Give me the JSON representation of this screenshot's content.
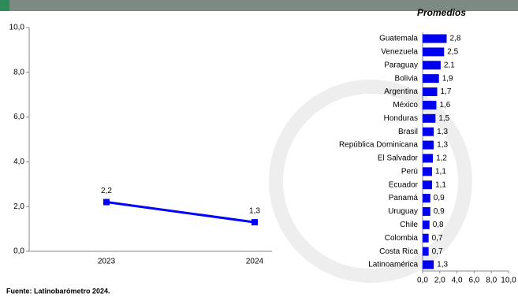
{
  "chart_data": [
    {
      "type": "line",
      "categories": [
        "2023",
        "2024"
      ],
      "values": [
        2.2,
        1.3
      ],
      "value_labels": [
        "2,2",
        "1,3"
      ],
      "color": "#0000ff",
      "ylim": [
        0,
        10
      ],
      "yticks": [
        {
          "value": 0,
          "label": "0,0"
        },
        {
          "value": 2,
          "label": "2,0"
        },
        {
          "value": 4,
          "label": "4,0"
        },
        {
          "value": 6,
          "label": "6,0"
        },
        {
          "value": 8,
          "label": "8,0"
        },
        {
          "value": 10,
          "label": "10,0"
        }
      ]
    },
    {
      "type": "hbar",
      "title": "Promedios",
      "categories": [
        "Guatemala",
        "Venezuela",
        "Paraguay",
        "Bolivia",
        "Argentina",
        "México",
        "Honduras",
        "Brasil",
        "República Dominicana",
        "El Salvador",
        "Perú",
        "Ecuador",
        "Panamá",
        "Uruguay",
        "Chile",
        "Colombia",
        "Costa Rica",
        "Latinoamérica"
      ],
      "values": [
        2.8,
        2.5,
        2.1,
        1.9,
        1.7,
        1.6,
        1.5,
        1.3,
        1.3,
        1.2,
        1.1,
        1.1,
        0.9,
        0.9,
        0.8,
        0.7,
        0.7,
        1.3
      ],
      "value_labels": [
        "2,8",
        "2,5",
        "2,1",
        "1,9",
        "1,7",
        "1,6",
        "1,5",
        "1,3",
        "1,3",
        "1,2",
        "1,1",
        "1,1",
        "0,9",
        "0,9",
        "0,8",
        "0,7",
        "0,7",
        "1,3"
      ],
      "color": "#0000ee",
      "xlim": [
        0,
        10
      ],
      "xticks": [
        {
          "value": 0,
          "label": "0,0"
        },
        {
          "value": 2,
          "label": "2,0"
        },
        {
          "value": 4,
          "label": "4,0"
        },
        {
          "value": 6,
          "label": "6,0"
        },
        {
          "value": 8,
          "label": "8,0"
        },
        {
          "value": 10,
          "label": "10,0"
        }
      ]
    }
  ],
  "footer": {
    "source": "Fuente: Latinobarómetro 2024."
  }
}
